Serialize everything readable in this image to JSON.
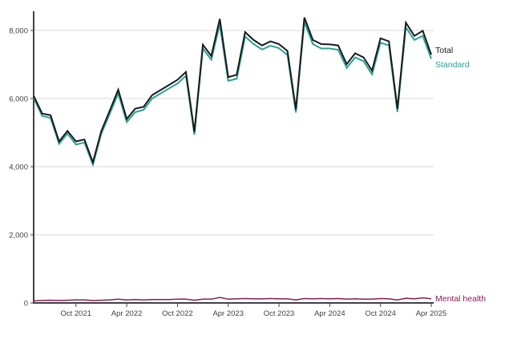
{
  "chart_data": {
    "type": "line",
    "title": "",
    "xlabel": "",
    "ylabel": "",
    "x": [
      "May 2021",
      "Jun 2021",
      "Jul 2021",
      "Aug 2021",
      "Sep 2021",
      "Oct 2021",
      "Nov 2021",
      "Dec 2021",
      "Jan 2022",
      "Feb 2022",
      "Mar 2022",
      "Apr 2022",
      "May 2022",
      "Jun 2022",
      "Jul 2022",
      "Aug 2022",
      "Sep 2022",
      "Oct 2022",
      "Nov 2022",
      "Dec 2022",
      "Jan 2023",
      "Feb 2023",
      "Mar 2023",
      "Apr 2023",
      "May 2023",
      "Jun 2023",
      "Jul 2023",
      "Aug 2023",
      "Sep 2023",
      "Oct 2023",
      "Nov 2023",
      "Dec 2023",
      "Jan 2024",
      "Feb 2024",
      "Mar 2024",
      "Apr 2024",
      "May 2024",
      "Jun 2024",
      "Jul 2024",
      "Aug 2024",
      "Sep 2024",
      "Oct 2024",
      "Nov 2024",
      "Dec 2024",
      "Jan 2025",
      "Feb 2025",
      "Mar 2025",
      "Apr 2025"
    ],
    "series": [
      {
        "name": "Standard",
        "color": "#28a197",
        "width": 2,
        "values": [
          6020,
          5490,
          5430,
          4670,
          4970,
          4650,
          4710,
          4060,
          4970,
          5560,
          6150,
          5310,
          5600,
          5670,
          6000,
          6150,
          6300,
          6440,
          6670,
          4940,
          7470,
          7140,
          8180,
          6520,
          6580,
          7820,
          7600,
          7440,
          7550,
          7480,
          7280,
          5590,
          8250,
          7600,
          7470,
          7470,
          7430,
          6900,
          7210,
          7100,
          6710,
          7640,
          7560,
          5610,
          8090,
          7720,
          7840,
          7170
        ]
      },
      {
        "name": "Total",
        "color": "#1a1a1a",
        "width": 2,
        "values": [
          6080,
          5560,
          5510,
          4740,
          5050,
          4740,
          4800,
          4130,
          5050,
          5650,
          6260,
          5400,
          5700,
          5760,
          6100,
          6250,
          6400,
          6550,
          6780,
          5020,
          7580,
          7250,
          8340,
          6630,
          6700,
          7950,
          7720,
          7560,
          7680,
          7600,
          7400,
          5680,
          8380,
          7720,
          7600,
          7590,
          7560,
          7010,
          7330,
          7210,
          6820,
          7770,
          7680,
          5700,
          8230,
          7840,
          7990,
          7290
        ]
      },
      {
        "name": "Mental health",
        "color": "#871a5b",
        "width": 1.5,
        "values": [
          60,
          70,
          80,
          70,
          80,
          90,
          90,
          70,
          80,
          90,
          110,
          90,
          100,
          90,
          100,
          100,
          100,
          110,
          110,
          80,
          110,
          110,
          160,
          110,
          120,
          130,
          120,
          120,
          130,
          120,
          120,
          90,
          130,
          120,
          130,
          120,
          130,
          110,
          120,
          110,
          110,
          130,
          120,
          90,
          140,
          120,
          150,
          120
        ]
      }
    ],
    "ylim": [
      0,
      8600
    ],
    "yticks": [
      0,
      2000,
      4000,
      6000,
      8000
    ],
    "ytick_labels": [
      "0",
      "2,000",
      "4,000",
      "6,000",
      "8,000"
    ],
    "xtick_indices": [
      5,
      11,
      17,
      23,
      29,
      35,
      41,
      47
    ],
    "xtick_labels": [
      "Oct 2021",
      "Apr 2022",
      "Oct 2022",
      "Apr 2023",
      "Oct 2023",
      "Apr 2024",
      "Oct 2024",
      "Apr 2025"
    ],
    "grid": true,
    "legend_position": "line-end-labels"
  },
  "end_labels": {
    "total": "Total",
    "standard": "Standard",
    "mental_health": "Mental health"
  },
  "colors": {
    "axis": "#424242",
    "gridline": "#d9d9d9",
    "tick_text": "#414042",
    "total": "#1a1a1a",
    "standard": "#28a197",
    "mental_health": "#871a5b",
    "background": "#ffffff"
  }
}
